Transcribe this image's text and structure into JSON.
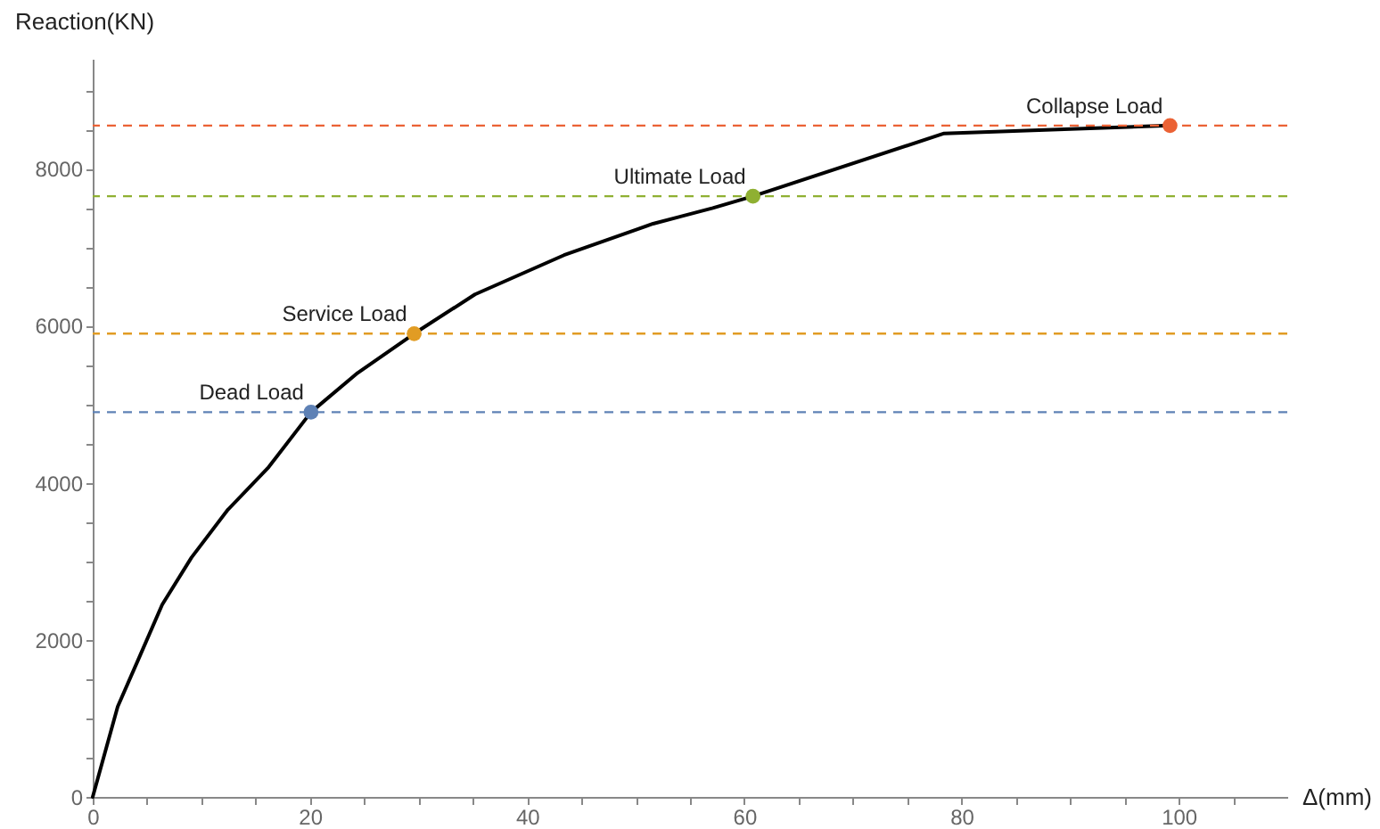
{
  "chart_data": {
    "type": "line",
    "xlabel": "Δ(mm)",
    "ylabel": "Reaction(KN)",
    "xlim": [
      0,
      110
    ],
    "ylim": [
      0,
      9400
    ],
    "xticks": [
      0,
      {
        "value": 5,
        "label": null
      },
      {
        "value": 10,
        "label": null
      },
      {
        "value": 15,
        "label": null
      },
      20,
      {
        "value": 25,
        "label": null
      },
      {
        "value": 30,
        "label": null
      },
      {
        "value": 35,
        "label": null
      },
      40,
      {
        "value": 45,
        "label": null
      },
      {
        "value": 50,
        "label": null
      },
      {
        "value": 55,
        "label": null
      },
      60,
      {
        "value": 65,
        "label": null
      },
      {
        "value": 70,
        "label": null
      },
      {
        "value": 75,
        "label": null
      },
      80,
      {
        "value": 85,
        "label": null
      },
      {
        "value": 90,
        "label": null
      },
      {
        "value": 95,
        "label": null
      },
      100,
      {
        "value": 105,
        "label": null
      }
    ],
    "yticks": [
      0,
      {
        "value": 500,
        "label": null
      },
      {
        "value": 1000,
        "label": null
      },
      {
        "value": 1500,
        "label": null
      },
      2000,
      {
        "value": 2500,
        "label": null
      },
      {
        "value": 3000,
        "label": null
      },
      {
        "value": 3500,
        "label": null
      },
      4000,
      {
        "value": 4500,
        "label": null
      },
      {
        "value": 5000,
        "label": null
      },
      {
        "value": 5500,
        "label": null
      },
      6000,
      {
        "value": 6500,
        "label": null
      },
      {
        "value": 7000,
        "label": null
      },
      {
        "value": 7500,
        "label": null
      },
      8000,
      {
        "value": 8500,
        "label": null
      },
      {
        "value": 9000,
        "label": null
      }
    ],
    "grid": false,
    "series": [
      {
        "color": "#000000",
        "marker": "none",
        "line_style": "solid",
        "x": [
          0,
          2.3,
          4.2,
          6.4,
          9.1,
          12.4,
          16.2,
          20.1,
          24.4,
          29.6,
          35.2,
          43.4,
          51.6,
          57.1,
          60.8,
          78.4,
          99.2
        ],
        "values": [
          0,
          1150,
          1750,
          2450,
          3050,
          3650,
          4200,
          4900,
          5400,
          5900,
          6400,
          6900,
          7300,
          7500,
          7650,
          8450,
          8550
        ]
      },
      {
        "type": "scatter",
        "marker": "circle",
        "x": [
          20.1,
          29.6,
          60.8,
          99.2
        ],
        "values": [
          4900,
          5900,
          7650,
          8550
        ],
        "colors": [
          "#5e81b5",
          "#e19c24",
          "#8fb032",
          "#eb6235"
        ]
      }
    ],
    "ref_lines": [
      {
        "axis": "y",
        "value": 8550,
        "color": "#eb6235",
        "line_style": "dashed"
      },
      {
        "axis": "y",
        "value": 7650,
        "color": "#8fb032",
        "line_style": "dashed"
      },
      {
        "axis": "y",
        "value": 5900,
        "color": "#e19c24",
        "line_style": "dashed"
      },
      {
        "axis": "y",
        "value": 4900,
        "color": "#5e81b5",
        "line_style": "dashed"
      }
    ],
    "annotations": [
      {
        "text": "Dead Load",
        "x": 20.1,
        "y": 4900
      },
      {
        "text": "Service Load",
        "x": 29.6,
        "y": 5900
      },
      {
        "text": "Ultimate Load",
        "x": 60.8,
        "y": 7650
      },
      {
        "text": "Collapse Load",
        "x": 99.2,
        "y": 8550
      }
    ]
  }
}
